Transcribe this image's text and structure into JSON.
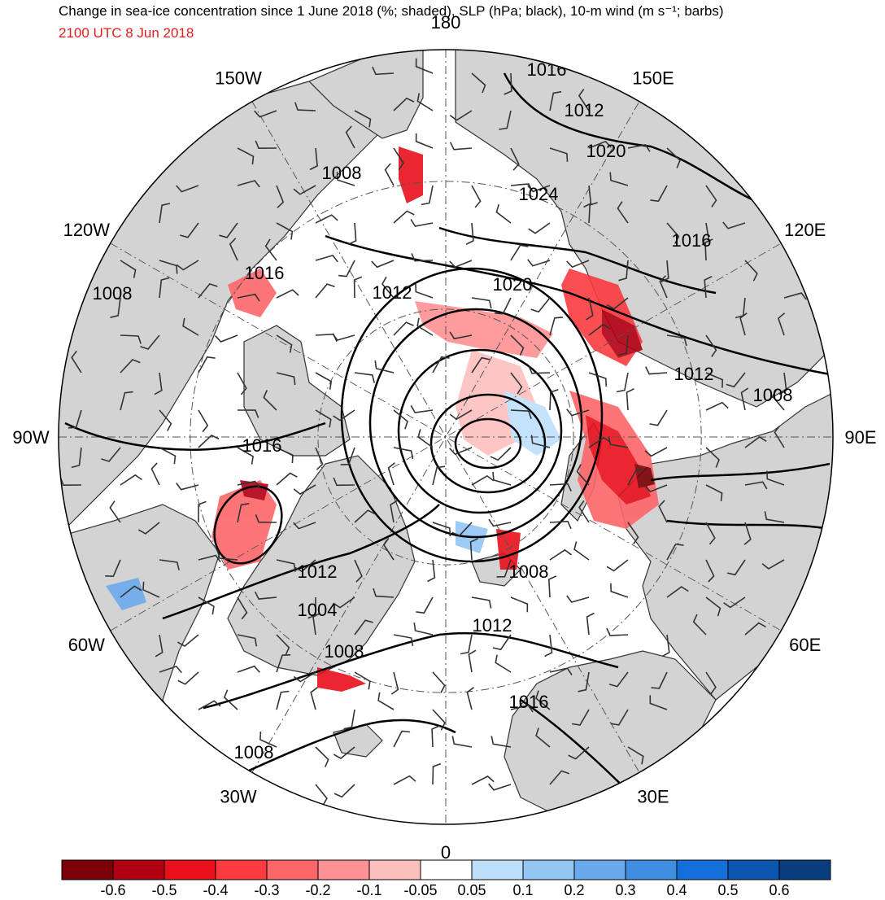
{
  "header": {
    "title": "Change in sea-ice concentration since 1 June 2018 (%; shaded), SLP (hPa; black), 10-m wind (m s⁻¹; barbs)",
    "subtitle": "2100 UTC 8 Jun 2018",
    "subtitle_color": "#e0201b"
  },
  "map": {
    "projection": "north-polar-stereographic",
    "land_color": "#d3d3d3",
    "ocean_color": "#ffffff",
    "longitude_labels": [
      {
        "text": "180",
        "lon": 180
      },
      {
        "text": "150E",
        "lon": 150
      },
      {
        "text": "120E",
        "lon": 120
      },
      {
        "text": "90E",
        "lon": 90
      },
      {
        "text": "60E",
        "lon": 60
      },
      {
        "text": "30E",
        "lon": 30
      },
      {
        "text": "0",
        "lon": 0
      },
      {
        "text": "30W",
        "lon": -30
      },
      {
        "text": "60W",
        "lon": -60
      },
      {
        "text": "90W",
        "lon": -90
      },
      {
        "text": "120W",
        "lon": -120
      },
      {
        "text": "150W",
        "lon": -150
      }
    ],
    "slp_labels": [
      "1016",
      "1012",
      "1020",
      "1008",
      "1024",
      "1016",
      "1008",
      "1016",
      "1012",
      "1020",
      "1012",
      "1008",
      "1016",
      "1012",
      "1004",
      "1008",
      "1008",
      "1012",
      "1016",
      "1008"
    ]
  },
  "colorbar": {
    "colors": [
      "#7a0006",
      "#b10012",
      "#e8101a",
      "#fb3b3f",
      "#fd6669",
      "#fe9193",
      "#febfbf",
      "#ffffff",
      "#bedffc",
      "#94c6f4",
      "#6aaaec",
      "#3f8ee1",
      "#156fdb",
      "#0c55b0",
      "#0a3d7d"
    ],
    "tick_labels": [
      "-0.6",
      "-0.5",
      "-0.4",
      "-0.3",
      "-0.2",
      "-0.1",
      "-0.05",
      "0.05",
      "0.1",
      "0.2",
      "0.3",
      "0.4",
      "0.5",
      "0.6"
    ]
  }
}
